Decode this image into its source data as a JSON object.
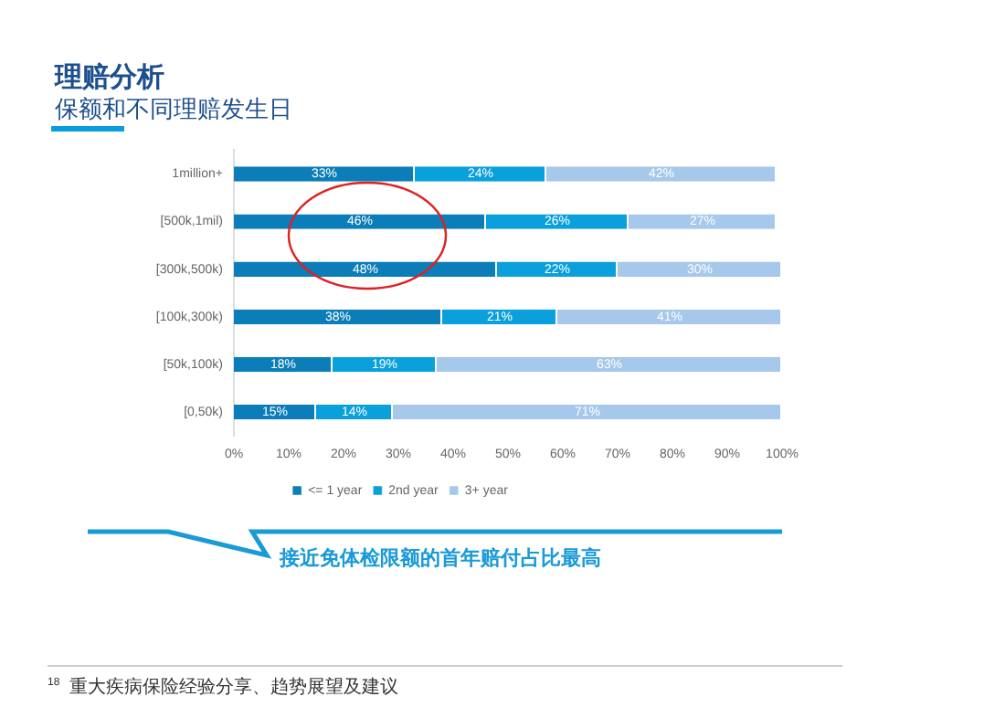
{
  "chart_data": {
    "type": "bar",
    "orientation": "horizontal",
    "stacked": true,
    "title": "理赔分析",
    "subtitle": "保额和不同理赔发生日",
    "categories": [
      "1million+",
      "[500k,1mil)",
      "[300k,500k)",
      "[100k,300k)",
      "[50k,100k)",
      "[0,50k)"
    ],
    "series": [
      {
        "name": "<= 1 year",
        "color": "#0b7db8",
        "values": [
          33,
          46,
          48,
          38,
          18,
          15
        ],
        "value_labels": [
          "33%",
          "46%",
          "48%",
          "38%",
          "18%",
          "15%"
        ]
      },
      {
        "name": "2nd year",
        "color": "#0aa0dc",
        "values": [
          24,
          26,
          22,
          21,
          19,
          14
        ],
        "value_labels": [
          "24%",
          "26%",
          "22%",
          "21%",
          "19%",
          "14%"
        ]
      },
      {
        "name": "3+ year",
        "color": "#a6c8ea",
        "values": [
          42,
          27,
          30,
          41,
          63,
          71
        ],
        "value_labels": [
          "42%",
          "27%",
          "30%",
          "41%",
          "63%",
          "71%"
        ]
      }
    ],
    "xlim": [
      0,
      100
    ],
    "xticks": [
      {
        "value": 0,
        "label": "0%"
      },
      {
        "value": 10,
        "label": "10%"
      },
      {
        "value": 20,
        "label": "20%"
      },
      {
        "value": 30,
        "label": "30%"
      },
      {
        "value": 40,
        "label": "40%"
      },
      {
        "value": 50,
        "label": "50%"
      },
      {
        "value": 60,
        "label": "60%"
      },
      {
        "value": 70,
        "label": "70%"
      },
      {
        "value": 80,
        "label": "80%"
      },
      {
        "value": 90,
        "label": "90%"
      },
      {
        "value": 100,
        "label": "100%"
      }
    ],
    "grid": false,
    "legend": "bottom",
    "annotations": [
      "接近免体检限额的首年赔付占比最高",
      "18",
      "重大疾病保险经验分享、趋势展望及建议"
    ]
  }
}
